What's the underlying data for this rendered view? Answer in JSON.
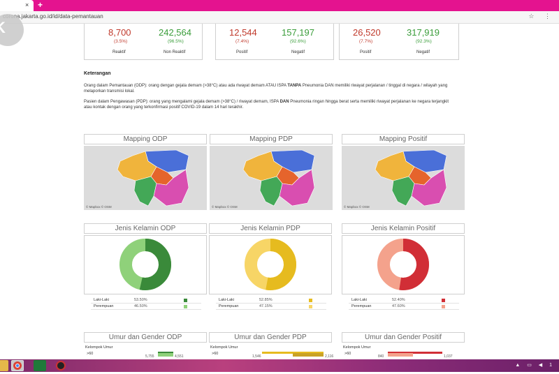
{
  "browser": {
    "tab_close": "×",
    "new_tab": "+",
    "url": "corona.jakarta.go.id/id/data-pemantauan",
    "address_icons": "☆ ⋮"
  },
  "stats": {
    "odp": {
      "left_value": "8,700",
      "left_pct": "(3.5%)",
      "left_label": "Reaktif",
      "right_value": "242,564",
      "right_pct": "(96.5%)",
      "right_label": "Non Reaktif"
    },
    "pdp": {
      "left_value": "12,544",
      "left_pct": "(7.4%)",
      "left_label": "Positif",
      "right_value": "157,197",
      "right_pct": "(92.6%)",
      "right_label": "Negatif"
    },
    "positif": {
      "left_value": "26,520",
      "left_pct": "(7.7%)",
      "left_label": "Positif",
      "right_value": "317,919",
      "right_pct": "(92.3%)",
      "right_label": "Negatif"
    }
  },
  "keterangan": {
    "title": "Keterangan",
    "odp_text_1": "Orang dalam Pemantauan (ODP): orang dengan gejala demam (>38°C) atau ada riwayat demam ATAU ISPA ",
    "odp_bold": "TANPA",
    "odp_text_2": " Pneumonia DAN memiliki riwayat perjalanan / tinggal di negara / wilayah yang melaporkan transmisi lokal.",
    "pdp_text_1": "Pasien dalam Pengawasan (PDP): orang yang mengalami gejala demam (>38°C) / riwayat demam, ISPA ",
    "pdp_bold": "DAN",
    "pdp_text_2": " Pneumonia ringan hingga berat serta memiliki riwayat perjalanan ke negara terjangkit atau kontak dengan orang yang terkonfirmasi positif COVID-19 dalam 14 hari terakhir."
  },
  "maps": {
    "titles": [
      "Mapping ODP",
      "Mapping PDP",
      "Mapping Positif"
    ],
    "credit": "© Mapbox © OSM",
    "region_colors": [
      "#4a6fd8",
      "#f0b43c",
      "#e5642c",
      "#43a857",
      "#d94eb0"
    ]
  },
  "gender": {
    "titles": [
      "Jenis Kelamin ODP",
      "Jenis Kelamin PDP",
      "Jenis Kelamin Positif"
    ],
    "odp": {
      "male_label": "Laki-Laki",
      "male_pct": "53.50%",
      "female_label": "Perempuan",
      "female_pct": "46.50%",
      "male_color": "#3a8a3a",
      "female_color": "#8fd17a"
    },
    "pdp": {
      "male_label": "Laki-Laki",
      "male_pct": "52.85%",
      "female_label": "Perempuan",
      "female_pct": "47.15%",
      "male_color": "#e6bb1f",
      "female_color": "#f7d566"
    },
    "positif": {
      "male_label": "Laki-Laki",
      "male_pct": "52.40%",
      "female_label": "Perempuan",
      "female_pct": "47.60%",
      "male_color": "#d12e36",
      "female_color": "#f4a28c"
    }
  },
  "age": {
    "titles": [
      "Umur dan Gender ODP",
      "Umur dan Gender PDP",
      "Umur dan Gender Positif"
    ],
    "header": "Kelompok Umur",
    "row_label": ">60",
    "odp": {
      "v1": "5,755",
      "v2": "4,551",
      "c1": "#3a8a3a",
      "c2": "#8fd17a"
    },
    "pdp": {
      "v1": "1,546",
      "v2": "2,116",
      "c1": "#e6bb1f",
      "c2": "#c9a227"
    },
    "positif": {
      "v1": "840",
      "v2": "1,037",
      "c1": "#f4a28c",
      "c2": "#d12e36"
    }
  },
  "taskbar": {
    "tray": "▲ ▭ ◀ 1"
  }
}
